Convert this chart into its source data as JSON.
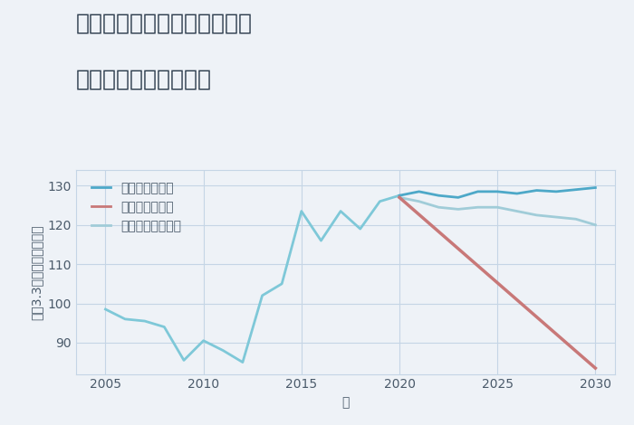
{
  "title_line1": "兵庫県西宮市甲子園浦風町の",
  "title_line2": "中古戸建ての価格推移",
  "xlabel": "年",
  "ylabel": "坪（3.3㎡）単価（万円）",
  "background_color": "#eef2f7",
  "plot_bg_color": "#eef2f7",
  "ylim": [
    82,
    134
  ],
  "yticks": [
    90,
    100,
    110,
    120,
    130
  ],
  "xticks": [
    2005,
    2010,
    2015,
    2020,
    2025,
    2030
  ],
  "historical": {
    "years": [
      2005,
      2006,
      2007,
      2008,
      2009,
      2010,
      2011,
      2012,
      2013,
      2014,
      2015,
      2016,
      2017,
      2018,
      2019,
      2020
    ],
    "values": [
      98.5,
      96.0,
      95.5,
      94.0,
      85.5,
      90.5,
      88.0,
      85.0,
      102.0,
      105.0,
      123.5,
      116.0,
      123.5,
      119.0,
      126.0,
      127.5
    ],
    "color": "#7ec8d8",
    "linewidth": 2.0
  },
  "good": {
    "years": [
      2020,
      2021,
      2022,
      2023,
      2024,
      2025,
      2026,
      2027,
      2028,
      2029,
      2030
    ],
    "values": [
      127.5,
      128.5,
      127.5,
      127.0,
      128.5,
      128.5,
      128.0,
      128.8,
      128.5,
      129.0,
      129.5
    ],
    "color": "#4da8c8",
    "linewidth": 2.0,
    "label": "グッドシナリオ"
  },
  "bad": {
    "years": [
      2020,
      2030
    ],
    "values": [
      127.0,
      83.5
    ],
    "color": "#c87878",
    "linewidth": 2.5,
    "label": "バッドシナリオ"
  },
  "normal": {
    "years": [
      2020,
      2021,
      2022,
      2023,
      2024,
      2025,
      2026,
      2027,
      2028,
      2029,
      2030
    ],
    "values": [
      127.0,
      126.0,
      124.5,
      124.0,
      124.5,
      124.5,
      123.5,
      122.5,
      122.0,
      121.5,
      120.0
    ],
    "color": "#a0ccd8",
    "linewidth": 2.0,
    "label": "ノーマルシナリオ"
  },
  "grid_color": "#c5d5e5",
  "title_fontsize": 18,
  "axis_label_fontsize": 10,
  "tick_fontsize": 10,
  "legend_fontsize": 10
}
